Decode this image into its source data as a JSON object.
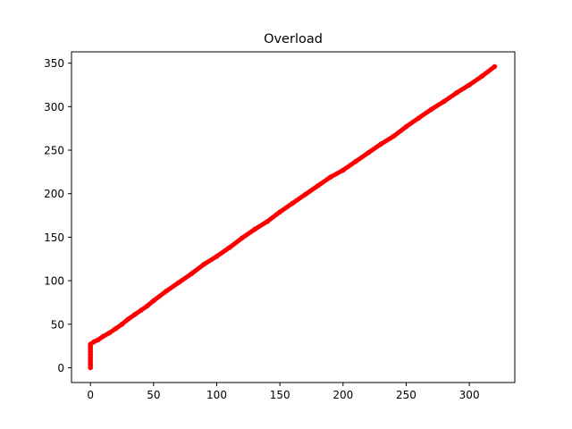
{
  "chart_data": {
    "type": "scatter",
    "title": "Overload",
    "xlabel": "",
    "ylabel": "",
    "xlim": [
      -15,
      336
    ],
    "ylim": [
      -17,
      363
    ],
    "x_ticks": [
      0,
      50,
      100,
      150,
      200,
      250,
      300
    ],
    "y_ticks": [
      0,
      50,
      100,
      150,
      200,
      250,
      300,
      350
    ],
    "grid": false,
    "series": [
      {
        "color": "#ff0000",
        "marker": "circle",
        "points": [
          [
            0,
            0
          ],
          [
            0,
            3
          ],
          [
            0,
            6
          ],
          [
            0,
            9
          ],
          [
            0,
            12
          ],
          [
            0,
            15
          ],
          [
            0,
            18
          ],
          [
            0,
            21
          ],
          [
            0,
            24
          ],
          [
            0,
            27
          ],
          [
            3,
            30
          ],
          [
            6,
            32
          ],
          [
            10,
            36
          ],
          [
            15,
            40
          ],
          [
            20,
            45
          ],
          [
            25,
            50
          ],
          [
            30,
            56
          ],
          [
            35,
            61
          ],
          [
            40,
            66
          ],
          [
            45,
            71
          ],
          [
            50,
            77
          ],
          [
            60,
            88
          ],
          [
            70,
            98
          ],
          [
            80,
            108
          ],
          [
            90,
            119
          ],
          [
            100,
            128
          ],
          [
            110,
            138
          ],
          [
            120,
            149
          ],
          [
            130,
            159
          ],
          [
            140,
            168
          ],
          [
            150,
            179
          ],
          [
            160,
            189
          ],
          [
            170,
            199
          ],
          [
            180,
            209
          ],
          [
            190,
            219
          ],
          [
            200,
            227
          ],
          [
            210,
            237
          ],
          [
            220,
            247
          ],
          [
            230,
            257
          ],
          [
            240,
            266
          ],
          [
            250,
            277
          ],
          [
            260,
            287
          ],
          [
            270,
            297
          ],
          [
            280,
            306
          ],
          [
            290,
            316
          ],
          [
            300,
            325
          ],
          [
            310,
            335
          ],
          [
            320,
            346
          ]
        ]
      }
    ]
  }
}
